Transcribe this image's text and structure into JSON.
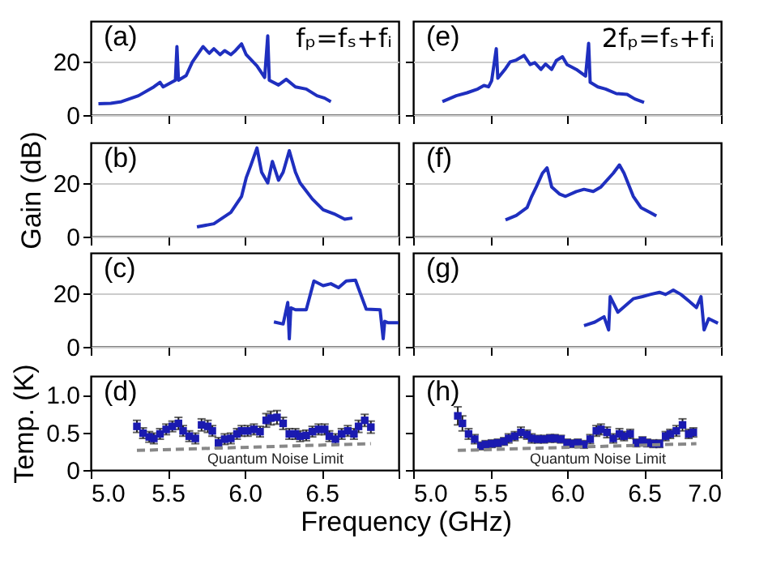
{
  "chart_data": [
    {
      "type": "line",
      "annotations": [
        "(a)",
        "fₚ=fₛ+fᵢ"
      ],
      "xlim": [
        5,
        7
      ],
      "xticks": [
        5,
        5.5,
        6,
        6.5,
        7
      ],
      "ylim": [
        0,
        35
      ],
      "yticks": [
        0,
        20
      ],
      "grid": "y",
      "tick_labels": "y",
      "series": [
        {
          "color": "#1f2fbf",
          "x": [
            5.05,
            5.13,
            5.2,
            5.31,
            5.41,
            5.45,
            5.47,
            5.55,
            5.56,
            5.57,
            5.62,
            5.66,
            5.73,
            5.77,
            5.8,
            5.84,
            5.87,
            5.91,
            5.94,
            5.98,
            6.01,
            6.08,
            6.13,
            6.15,
            6.16,
            6.22,
            6.27,
            6.33,
            6.4,
            6.47,
            6.52,
            6.56
          ],
          "values": [
            4.2,
            4.4,
            5,
            7.2,
            10.5,
            12.2,
            10.5,
            13,
            25.5,
            13,
            14.7,
            19.7,
            25.5,
            23,
            24.7,
            22.5,
            24,
            22.5,
            24,
            26.5,
            22.5,
            18.3,
            14,
            29.5,
            13,
            11.2,
            13.3,
            10.5,
            9.7,
            7.2,
            6.3,
            5
          ]
        }
      ]
    },
    {
      "type": "line",
      "annotations": [
        "(e)",
        "2fₚ=fₛ+fᵢ"
      ],
      "xlim": [
        5,
        7
      ],
      "xticks": [
        5,
        5.5,
        6,
        6.5,
        7
      ],
      "ylim": [
        0,
        35
      ],
      "yticks": [
        0,
        20
      ],
      "grid": "y",
      "tick_labels": false,
      "series": [
        {
          "color": "#1f2fbf",
          "x": [
            5.19,
            5.28,
            5.35,
            5.42,
            5.46,
            5.49,
            5.51,
            5.54,
            5.55,
            5.6,
            5.63,
            5.67,
            5.72,
            5.76,
            5.79,
            5.83,
            5.86,
            5.9,
            5.93,
            5.97,
            6.0,
            6.06,
            6.12,
            6.14,
            6.15,
            6.2,
            6.25,
            6.32,
            6.39,
            6.44,
            6.5
          ],
          "values": [
            5,
            7.2,
            8.3,
            9.7,
            11,
            10.5,
            12.8,
            24.7,
            13.7,
            17.3,
            19.8,
            20.5,
            22.2,
            18.8,
            19.5,
            17,
            19,
            17,
            20.3,
            21.7,
            18.8,
            17,
            14.5,
            26.7,
            12.2,
            10.5,
            9.7,
            8,
            7.7,
            6,
            4.7
          ]
        }
      ]
    },
    {
      "type": "line",
      "annotations": [
        "(b)"
      ],
      "ylabel": "Gain (dB)",
      "xlim": [
        5,
        7
      ],
      "xticks": [
        5,
        5.5,
        6,
        6.5,
        7
      ],
      "ylim": [
        0,
        35
      ],
      "yticks": [
        0,
        20
      ],
      "grid": "y",
      "tick_labels": "y",
      "series": [
        {
          "color": "#1f2fbf",
          "x": [
            5.69,
            5.8,
            5.91,
            5.98,
            6.01,
            6.04,
            6.08,
            6.11,
            6.15,
            6.18,
            6.22,
            6.25,
            6.29,
            6.33,
            6.36,
            6.44,
            6.51,
            6.58,
            6.65,
            6.7
          ],
          "values": [
            3.6,
            4.8,
            9,
            15,
            21.9,
            26.5,
            33,
            24,
            20,
            28,
            21,
            24,
            32,
            24,
            20,
            14,
            10,
            8.5,
            6.5,
            6.9
          ]
        }
      ]
    },
    {
      "type": "line",
      "annotations": [
        "(f)"
      ],
      "xlim": [
        5,
        7
      ],
      "xticks": [
        5,
        5.5,
        6,
        6.5,
        7
      ],
      "ylim": [
        0,
        35
      ],
      "yticks": [
        0,
        20
      ],
      "grid": "y",
      "tick_labels": false,
      "series": [
        {
          "color": "#1f2fbf",
          "x": [
            5.6,
            5.67,
            5.74,
            5.77,
            5.8,
            5.84,
            5.87,
            5.9,
            5.95,
            5.99,
            6.06,
            6.11,
            6.17,
            6.22,
            6.3,
            6.34,
            6.37,
            6.43,
            6.48,
            6.54,
            6.58
          ],
          "values": [
            6.2,
            7.9,
            10.8,
            15,
            18.5,
            23.6,
            25.6,
            18.5,
            15.9,
            15,
            16.8,
            17.6,
            16.8,
            18.5,
            23.6,
            26.7,
            23.6,
            15,
            10.8,
            9,
            7.7
          ]
        }
      ]
    },
    {
      "type": "line",
      "annotations": [
        "(c)"
      ],
      "xlim": [
        5,
        7
      ],
      "xticks": [
        5,
        5.5,
        6,
        6.5,
        7
      ],
      "ylim": [
        0,
        35
      ],
      "yticks": [
        0,
        20
      ],
      "grid": "y",
      "tick_labels": "y",
      "series": [
        {
          "color": "#1f2fbf",
          "x": [
            6.19,
            6.25,
            6.28,
            6.29,
            6.3,
            6.33,
            6.4,
            6.45,
            6.51,
            6.56,
            6.61,
            6.66,
            6.72,
            6.79,
            6.88,
            6.9,
            6.91,
            6.93,
            7.0
          ],
          "values": [
            9.3,
            8.5,
            16.5,
            3,
            14.5,
            13.8,
            13.8,
            24.5,
            22.8,
            23.5,
            22,
            24.5,
            24.8,
            14,
            13.8,
            3,
            9.5,
            9,
            9
          ]
        }
      ]
    },
    {
      "type": "line",
      "annotations": [
        "(g)"
      ],
      "xlim": [
        5,
        7
      ],
      "xticks": [
        5,
        5.5,
        6,
        6.5,
        7
      ],
      "ylim": [
        0,
        35
      ],
      "yticks": [
        0,
        20
      ],
      "grid": "y",
      "tick_labels": false,
      "series": [
        {
          "color": "#1f2fbf",
          "x": [
            6.11,
            6.18,
            6.24,
            6.27,
            6.28,
            6.33,
            6.38,
            6.43,
            6.49,
            6.54,
            6.6,
            6.64,
            6.69,
            6.74,
            6.79,
            6.84,
            6.87,
            6.89,
            6.92,
            6.98
          ],
          "values": [
            7.9,
            9.2,
            11.2,
            6.3,
            18.7,
            12.9,
            15.4,
            17.9,
            18.7,
            19.5,
            20.3,
            19.5,
            21.1,
            19.5,
            17.1,
            14.6,
            18.7,
            6.3,
            10.5,
            8.8
          ]
        }
      ]
    },
    {
      "type": "scatter",
      "annotations": [
        "(d)",
        "Quantum Noise Limit"
      ],
      "ylabel": "Temp. (K)",
      "xlabel": "Frequency (GHz)",
      "xlim": [
        5,
        7
      ],
      "xticks": [
        {
          "value": 5,
          "label": "5.0"
        },
        5.5,
        {
          "value": 6,
          "label": "6.0"
        },
        6.5,
        {
          "value": 7,
          "label": null
        }
      ],
      "ylim": [
        0,
        1.25
      ],
      "yticks": [
        0,
        0.5,
        {
          "value": 1,
          "label": "1.0"
        }
      ],
      "series": [
        {
          "color": "#1a1ab0",
          "marker": "square",
          "x": [
            5.3,
            5.34,
            5.38,
            5.41,
            5.45,
            5.49,
            5.53,
            5.57,
            5.6,
            5.64,
            5.68,
            5.72,
            5.76,
            5.79,
            5.83,
            5.87,
            5.91,
            5.95,
            5.98,
            6.02,
            6.06,
            6.1,
            6.14,
            6.17,
            6.21,
            6.25,
            6.29,
            6.33,
            6.36,
            6.4,
            6.44,
            6.48,
            6.52,
            6.55,
            6.59,
            6.63,
            6.67,
            6.71,
            6.74,
            6.78,
            6.82
          ],
          "values": [
            0.58,
            0.49,
            0.44,
            0.42,
            0.48,
            0.54,
            0.58,
            0.62,
            0.52,
            0.45,
            0.42,
            0.6,
            0.58,
            0.52,
            0.36,
            0.41,
            0.42,
            0.48,
            0.52,
            0.52,
            0.54,
            0.51,
            0.66,
            0.69,
            0.7,
            0.62,
            0.48,
            0.48,
            0.45,
            0.46,
            0.51,
            0.54,
            0.54,
            0.45,
            0.41,
            0.48,
            0.52,
            0.48,
            0.58,
            0.66,
            0.57
          ],
          "errors": [
            0.08,
            0.07,
            0.07,
            0.07,
            0.07,
            0.07,
            0.07,
            0.08,
            0.07,
            0.07,
            0.07,
            0.08,
            0.08,
            0.07,
            0.07,
            0.07,
            0.07,
            0.07,
            0.07,
            0.07,
            0.07,
            0.07,
            0.09,
            0.09,
            0.09,
            0.08,
            0.07,
            0.07,
            0.07,
            0.07,
            0.07,
            0.07,
            0.07,
            0.07,
            0.07,
            0.07,
            0.07,
            0.07,
            0.08,
            0.08,
            0.08
          ]
        },
        {
          "type": "line",
          "color": "#888888",
          "line_style": "dashed",
          "x": [
            5.3,
            6.82
          ],
          "values": [
            0.26,
            0.35
          ]
        }
      ]
    },
    {
      "type": "scatter",
      "annotations": [
        "(h)",
        "Quantum Noise Limit"
      ],
      "xlim": [
        5,
        7
      ],
      "xticks": [
        {
          "value": 5,
          "label": "5.0"
        },
        5.5,
        {
          "value": 6,
          "label": "6.0"
        },
        6.5,
        {
          "value": 7,
          "label": "7.0"
        }
      ],
      "ylim": [
        0,
        1.25
      ],
      "yticks": [
        0,
        0.5,
        1
      ],
      "tick_labels": "x",
      "series": [
        {
          "color": "#1a1ab0",
          "marker": "square",
          "x": [
            5.29,
            5.32,
            5.36,
            5.4,
            5.44,
            5.47,
            5.51,
            5.55,
            5.59,
            5.62,
            5.66,
            5.7,
            5.74,
            5.77,
            5.81,
            5.85,
            5.89,
            5.92,
            5.96,
            6.0,
            6.04,
            6.07,
            6.11,
            6.15,
            6.19,
            6.22,
            6.26,
            6.3,
            6.34,
            6.37,
            6.41,
            6.45,
            6.49,
            6.52,
            6.56,
            6.6,
            6.64,
            6.67,
            6.71,
            6.75,
            6.79,
            6.82
          ],
          "values": [
            0.72,
            0.62,
            0.48,
            0.41,
            0.32,
            0.34,
            0.35,
            0.36,
            0.38,
            0.42,
            0.45,
            0.5,
            0.47,
            0.42,
            0.41,
            0.41,
            0.42,
            0.42,
            0.41,
            0.36,
            0.35,
            0.36,
            0.34,
            0.41,
            0.52,
            0.54,
            0.5,
            0.42,
            0.48,
            0.45,
            0.48,
            0.36,
            0.39,
            0.36,
            0.35,
            0.35,
            0.45,
            0.48,
            0.52,
            0.6,
            0.48,
            0.5
          ],
          "errors": [
            0.12,
            0.1,
            0.07,
            0.06,
            0.05,
            0.05,
            0.05,
            0.05,
            0.05,
            0.06,
            0.06,
            0.07,
            0.06,
            0.06,
            0.05,
            0.05,
            0.05,
            0.05,
            0.05,
            0.05,
            0.05,
            0.05,
            0.05,
            0.06,
            0.07,
            0.07,
            0.07,
            0.06,
            0.07,
            0.06,
            0.06,
            0.05,
            0.05,
            0.05,
            0.05,
            0.05,
            0.06,
            0.06,
            0.07,
            0.08,
            0.06,
            0.06
          ]
        },
        {
          "type": "line",
          "color": "#888888",
          "line_style": "dashed",
          "x": [
            5.29,
            6.84
          ],
          "values": [
            0.26,
            0.35
          ]
        }
      ]
    }
  ]
}
